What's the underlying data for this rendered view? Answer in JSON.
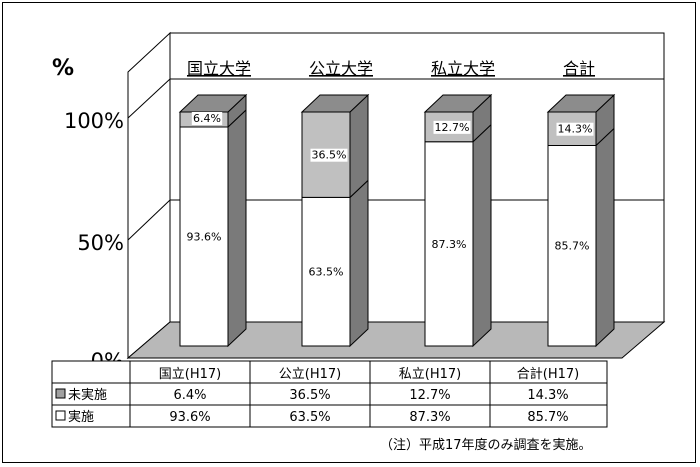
{
  "chart_data": {
    "type": "bar",
    "stacked": true,
    "percent_axis": true,
    "y_unit": "%",
    "yticks": [
      "100%",
      "50%",
      "0%"
    ],
    "ylim": [
      0,
      100
    ],
    "header_labels": [
      "国立大学",
      "公立大学",
      "私立大学",
      "合計"
    ],
    "categories": [
      "国立(H17)",
      "公立(H17)",
      "私立(H17)",
      "合計(H17)"
    ],
    "series": [
      {
        "name": "実施",
        "values": [
          93.6,
          63.5,
          87.3,
          85.7
        ],
        "labels": [
          "93.6%",
          "63.5%",
          "87.3%",
          "85.7%"
        ],
        "color": "#ffffff"
      },
      {
        "name": "未実施",
        "values": [
          6.4,
          36.5,
          12.7,
          14.3
        ],
        "labels": [
          "6.4%",
          "36.5%",
          "12.7%",
          "14.3%"
        ],
        "color": "#c0c0c0"
      }
    ],
    "table": {
      "rows": [
        {
          "label": "未実施",
          "values": [
            "6.4%",
            "36.5%",
            "12.7%",
            "14.3%"
          ]
        },
        {
          "label": "実施",
          "values": [
            "93.6%",
            "63.5%",
            "87.3%",
            "85.7%"
          ]
        }
      ]
    },
    "grid": true,
    "legend": "table"
  },
  "note": "（注）平成17年度のみ調査を実施。"
}
